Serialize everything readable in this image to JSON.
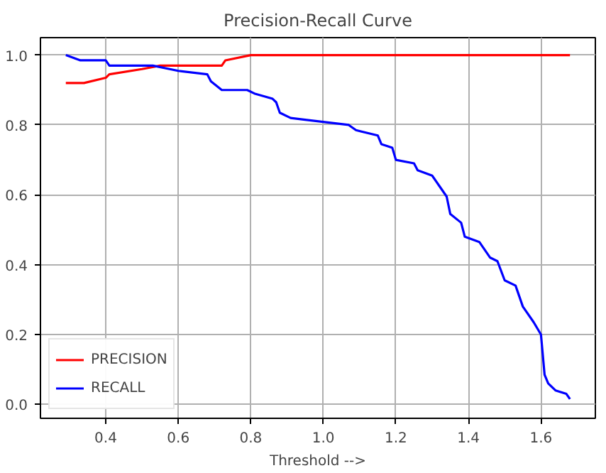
{
  "chart_data": {
    "type": "line",
    "title": "Precision-Recall Curve",
    "xlabel": "Threshold -->",
    "xlim": [
      0.22,
      1.75
    ],
    "ylim": [
      -0.04,
      1.05
    ],
    "xticks": [
      0.4,
      0.6,
      0.8,
      {
        "value": 1,
        "label": "1.0"
      },
      1.2,
      1.4,
      1.6
    ],
    "yticks": [
      {
        "value": 0,
        "label": "0.0"
      },
      0.2,
      0.4,
      0.6,
      0.8,
      {
        "value": 1,
        "label": "1.0"
      }
    ],
    "grid": true,
    "legend": "bottom left",
    "marker": "none",
    "line_style": "solid",
    "series": [
      {
        "name": "PRECISION",
        "color": "#ff0000",
        "x": [
          0.29,
          0.34,
          0.4,
          0.41,
          0.5,
          0.55,
          0.72,
          0.73,
          0.8,
          1.68
        ],
        "values": [
          0.92,
          0.92,
          0.935,
          0.945,
          0.96,
          0.97,
          0.97,
          0.985,
          1.0,
          1.0
        ]
      },
      {
        "name": "RECALL",
        "color": "#0000ff",
        "x": [
          0.29,
          0.33,
          0.4,
          0.41,
          0.53,
          0.6,
          0.68,
          0.69,
          0.72,
          0.79,
          0.81,
          0.86,
          0.87,
          0.88,
          0.91,
          0.95,
          1.07,
          1.09,
          1.15,
          1.16,
          1.19,
          1.2,
          1.25,
          1.26,
          1.3,
          1.32,
          1.34,
          1.35,
          1.38,
          1.39,
          1.43,
          1.46,
          1.48,
          1.5,
          1.53,
          1.55,
          1.58,
          1.6,
          1.61,
          1.62,
          1.64,
          1.67,
          1.68
        ],
        "values": [
          1.0,
          0.985,
          0.985,
          0.97,
          0.97,
          0.955,
          0.945,
          0.925,
          0.9,
          0.9,
          0.89,
          0.875,
          0.865,
          0.835,
          0.82,
          0.815,
          0.8,
          0.785,
          0.77,
          0.745,
          0.735,
          0.7,
          0.69,
          0.67,
          0.655,
          0.625,
          0.595,
          0.545,
          0.52,
          0.48,
          0.465,
          0.42,
          0.41,
          0.355,
          0.34,
          0.28,
          0.235,
          0.2,
          0.085,
          0.06,
          0.04,
          0.03,
          0.015
        ]
      }
    ]
  }
}
